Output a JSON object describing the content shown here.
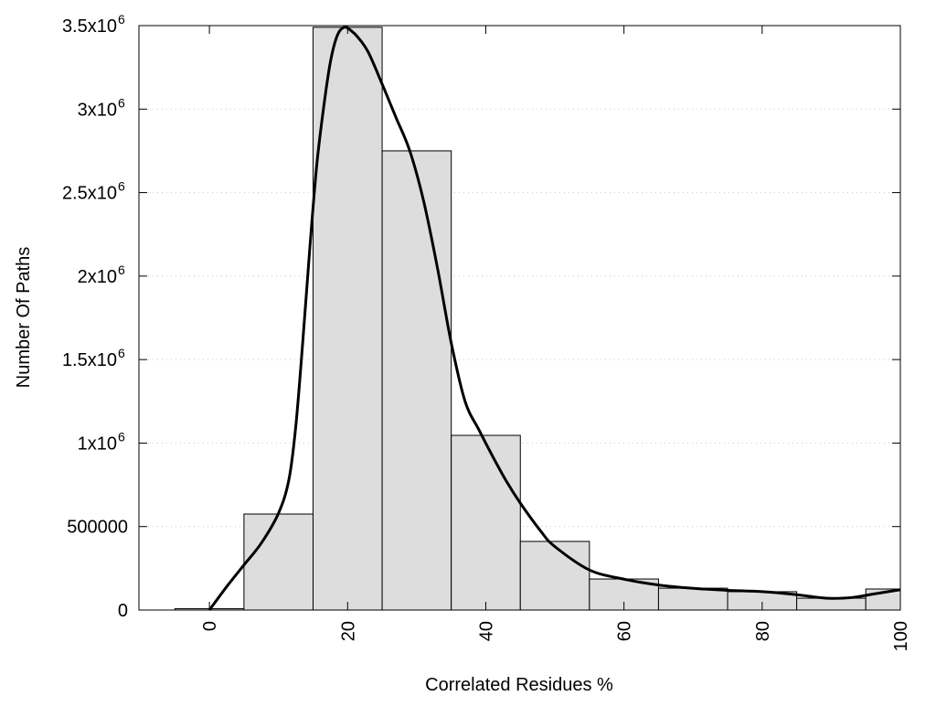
{
  "chart_data": {
    "type": "bar",
    "title": "",
    "xlabel": "Correlated Residues %",
    "ylabel": "Number Of Paths",
    "xlim": [
      -10.2,
      100
    ],
    "ylim": [
      0,
      3500000
    ],
    "grid": "horizontal dotted",
    "bar_width": 10,
    "bar_color": "#dddddd",
    "line_color": "#000000",
    "x_ticks": [
      {
        "value": 0,
        "label": "0"
      },
      {
        "value": 20,
        "label": "20"
      },
      {
        "value": 40,
        "label": "40"
      },
      {
        "value": 60,
        "label": "60"
      },
      {
        "value": 80,
        "label": "80"
      },
      {
        "value": 100,
        "label": "100"
      }
    ],
    "y_ticks": [
      {
        "value": 0,
        "label": "0",
        "sup": ""
      },
      {
        "value": 500000,
        "label": "500000",
        "sup": ""
      },
      {
        "value": 1000000,
        "label": "1x10",
        "sup": "6"
      },
      {
        "value": 1500000,
        "label": "1.5x10",
        "sup": "6"
      },
      {
        "value": 2000000,
        "label": "2x10",
        "sup": "6"
      },
      {
        "value": 2500000,
        "label": "2.5x10",
        "sup": "6"
      },
      {
        "value": 3000000,
        "label": "3x10",
        "sup": "6"
      },
      {
        "value": 3500000,
        "label": "3.5x10",
        "sup": "6"
      }
    ],
    "bars": {
      "x": [
        0,
        10,
        20,
        30,
        40,
        50,
        60,
        70,
        80,
        90,
        100
      ],
      "values": [
        8000,
        575000,
        3490000,
        2750000,
        1046000,
        411000,
        186000,
        131000,
        110000,
        71000,
        126000
      ]
    },
    "curve": {
      "x": [
        0,
        2.5,
        5,
        7.5,
        10,
        11.5,
        12.5,
        13.5,
        14.5,
        15.5,
        16.5,
        17.5,
        18.5,
        19.5,
        20.5,
        21.5,
        23,
        25,
        27,
        29,
        31,
        33,
        35,
        37,
        39,
        41,
        43,
        45,
        48,
        50,
        55,
        60,
        65,
        70,
        75,
        80,
        85,
        88,
        90,
        93,
        96,
        100
      ],
      "y": [
        0,
        140000,
        270000,
        400000,
        580000,
        780000,
        1100000,
        1600000,
        2150000,
        2650000,
        3000000,
        3280000,
        3440000,
        3490000,
        3470000,
        3430000,
        3340000,
        3150000,
        2950000,
        2750000,
        2450000,
        2050000,
        1600000,
        1250000,
        1080000,
        920000,
        770000,
        640000,
        470000,
        380000,
        240000,
        185000,
        150000,
        130000,
        118000,
        110000,
        92000,
        76000,
        70000,
        75000,
        95000,
        122000
      ]
    }
  }
}
